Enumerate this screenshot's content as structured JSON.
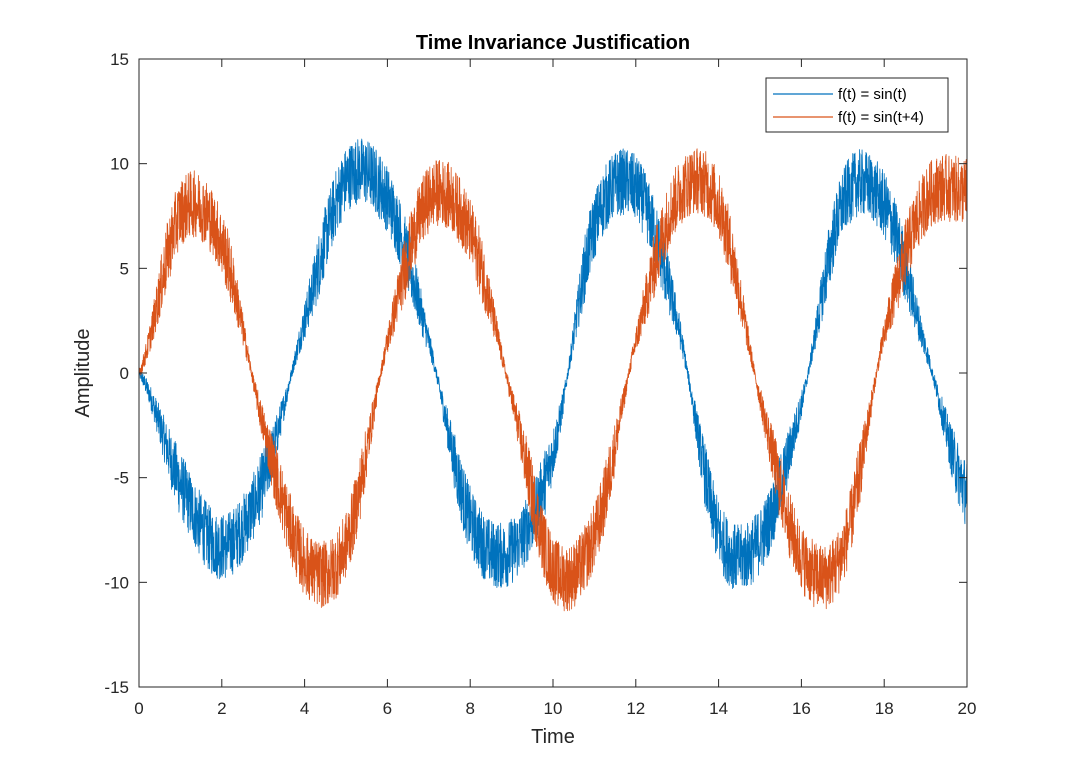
{
  "chart_data": {
    "type": "line",
    "title": "Time Invariance Justification",
    "xlabel": "Time",
    "ylabel": "Amplitude",
    "xlim": [
      0,
      20
    ],
    "ylim": [
      -15,
      15
    ],
    "xticks": [
      0,
      2,
      4,
      6,
      8,
      10,
      12,
      14,
      16,
      18,
      20
    ],
    "yticks": [
      -15,
      -10,
      -5,
      0,
      5,
      10,
      15
    ],
    "grid": false,
    "legend_position": "top-right",
    "series": [
      {
        "name": "f(t) = sin(t)",
        "color": "#0072BD",
        "x": [
          0,
          1,
          2,
          3,
          4,
          5,
          6,
          7,
          8,
          9,
          10,
          11,
          12,
          13,
          14,
          15,
          16,
          17,
          18,
          19,
          20
        ],
        "y": [
          0,
          -5.3,
          -8.3,
          -5.2,
          2.5,
          9.2,
          8.3,
          1.5,
          -7.0,
          -8.5,
          -3.8,
          7.0,
          8.8,
          2.5,
          -7.6,
          -8.0,
          -1.5,
          8.1,
          8.0,
          1.2,
          -5.8
        ],
        "noise_amplitude": 1.0
      },
      {
        "name": "f(t) = sin(t+4)",
        "color": "#D95319",
        "x": [
          0,
          1,
          2,
          3,
          4,
          5,
          6,
          7,
          8,
          9,
          10,
          11,
          12,
          13,
          14,
          15,
          16,
          17,
          18,
          19,
          20
        ],
        "y": [
          0,
          7.6,
          6.2,
          -2.5,
          -9.0,
          -8.2,
          1.5,
          8.3,
          6.7,
          -1.2,
          -9.3,
          -7.8,
          1.5,
          8.4,
          8.0,
          -1.2,
          -8.8,
          -8.5,
          1.8,
          8.2,
          8.7
        ],
        "noise_amplitude": 1.0
      }
    ]
  }
}
